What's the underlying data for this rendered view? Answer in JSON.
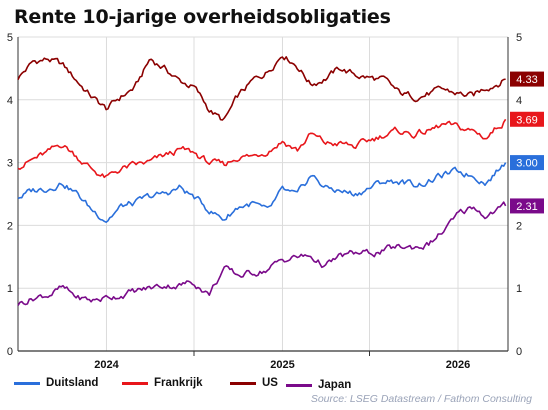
{
  "title": "Rente 10-jarige overheidsobligaties",
  "source": "Source: LSEG Datastream / Fathom Consulting",
  "colors": {
    "US": "#8b0000",
    "Frankrijk": "#e8161b",
    "Duitsland": "#2a6fdb",
    "Japan": "#7a0a8a",
    "grid": "#dcdcdc",
    "axis": "#333333"
  },
  "chart_data": {
    "type": "line",
    "title": "Rente 10-jarige overheidsobligaties",
    "xlabel": "",
    "ylabel": "",
    "ylim": [
      0,
      5
    ],
    "yticks": [
      0,
      1,
      2,
      3,
      4,
      5
    ],
    "xlim": [
      "2023-07-01",
      "2026-04-15"
    ],
    "xtick_labels": [
      {
        "label": "2024",
        "x": "2024-01-01"
      },
      {
        "label": "2025",
        "x": "2025-01-01"
      },
      {
        "label": "2026",
        "x": "2026-01-01"
      }
    ],
    "grid": true,
    "legend_position": "bottom",
    "series": [
      {
        "name": "US",
        "color": "#8b0000",
        "end_label": "4.33",
        "end_value": 4.33,
        "x": [
          "2023-07-01",
          "2023-08-01",
          "2023-09-01",
          "2023-10-01",
          "2023-11-01",
          "2023-12-01",
          "2024-01-01",
          "2024-02-01",
          "2024-03-01",
          "2024-04-01",
          "2024-05-01",
          "2024-06-01",
          "2024-07-01",
          "2024-08-01",
          "2024-09-01",
          "2024-10-01",
          "2024-11-01",
          "2024-12-01",
          "2025-01-01",
          "2025-02-01",
          "2025-03-01",
          "2025-04-01",
          "2025-05-01",
          "2025-06-01",
          "2025-07-01",
          "2025-08-01",
          "2025-09-01",
          "2025-10-01",
          "2025-11-01",
          "2025-12-01",
          "2026-01-01",
          "2026-02-01",
          "2026-03-01",
          "2026-04-10"
        ],
        "values": [
          4.35,
          4.6,
          4.65,
          4.55,
          4.3,
          4.05,
          3.85,
          4.05,
          4.2,
          4.65,
          4.5,
          4.3,
          4.2,
          3.85,
          3.65,
          4.05,
          4.3,
          4.45,
          4.75,
          4.55,
          4.25,
          4.35,
          4.5,
          4.4,
          4.35,
          4.3,
          4.1,
          4.05,
          4.1,
          4.15,
          4.1,
          4.05,
          4.2,
          4.33
        ]
      },
      {
        "name": "Frankrijk",
        "color": "#e8161b",
        "end_label": "3.69",
        "end_value": 3.69,
        "x": [
          "2023-07-01",
          "2023-08-01",
          "2023-09-01",
          "2023-10-01",
          "2023-11-01",
          "2023-12-01",
          "2024-01-01",
          "2024-02-01",
          "2024-03-01",
          "2024-04-01",
          "2024-05-01",
          "2024-06-01",
          "2024-07-01",
          "2024-08-01",
          "2024-09-01",
          "2024-10-01",
          "2024-11-01",
          "2024-12-01",
          "2025-01-01",
          "2025-02-01",
          "2025-03-01",
          "2025-04-01",
          "2025-05-01",
          "2025-06-01",
          "2025-07-01",
          "2025-08-01",
          "2025-09-01",
          "2025-10-01",
          "2025-11-01",
          "2025-12-01",
          "2026-01-01",
          "2026-02-01",
          "2026-03-01",
          "2026-04-10"
        ],
        "values": [
          2.95,
          3.05,
          3.15,
          3.3,
          3.1,
          2.9,
          2.75,
          2.9,
          2.95,
          3.0,
          3.1,
          3.2,
          3.15,
          3.0,
          2.95,
          3.1,
          3.1,
          3.2,
          3.35,
          3.2,
          3.45,
          3.3,
          3.3,
          3.25,
          3.35,
          3.45,
          3.5,
          3.45,
          3.5,
          3.6,
          3.55,
          3.5,
          3.4,
          3.69
        ]
      },
      {
        "name": "Duitsland",
        "color": "#2a6fdb",
        "end_label": "3.00",
        "end_value": 3.0,
        "x": [
          "2023-07-01",
          "2023-08-01",
          "2023-09-01",
          "2023-10-01",
          "2023-11-01",
          "2023-12-01",
          "2024-01-01",
          "2024-02-01",
          "2024-03-01",
          "2024-04-01",
          "2024-05-01",
          "2024-06-01",
          "2024-07-01",
          "2024-08-01",
          "2024-09-01",
          "2024-10-01",
          "2024-11-01",
          "2024-12-01",
          "2025-01-01",
          "2025-02-01",
          "2025-03-01",
          "2025-04-01",
          "2025-05-01",
          "2025-06-01",
          "2025-07-01",
          "2025-08-01",
          "2025-09-01",
          "2025-10-01",
          "2025-11-01",
          "2025-12-01",
          "2026-01-01",
          "2026-02-01",
          "2026-03-01",
          "2026-04-10"
        ],
        "values": [
          2.45,
          2.55,
          2.6,
          2.7,
          2.5,
          2.25,
          2.1,
          2.3,
          2.35,
          2.45,
          2.5,
          2.6,
          2.45,
          2.25,
          2.1,
          2.3,
          2.35,
          2.2,
          2.55,
          2.45,
          2.8,
          2.6,
          2.55,
          2.5,
          2.6,
          2.7,
          2.7,
          2.65,
          2.7,
          2.8,
          2.85,
          2.8,
          2.7,
          3.0
        ]
      },
      {
        "name": "Japan",
        "color": "#7a0a8a",
        "end_label": "2.31",
        "end_value": 2.31,
        "x": [
          "2023-07-01",
          "2023-08-01",
          "2023-09-01",
          "2023-10-01",
          "2023-11-01",
          "2023-12-01",
          "2024-01-01",
          "2024-02-01",
          "2024-03-01",
          "2024-04-01",
          "2024-05-01",
          "2024-06-01",
          "2024-07-01",
          "2024-08-01",
          "2024-09-01",
          "2024-10-01",
          "2024-11-01",
          "2024-12-01",
          "2025-01-01",
          "2025-02-01",
          "2025-03-01",
          "2025-04-01",
          "2025-05-01",
          "2025-06-01",
          "2025-07-01",
          "2025-08-01",
          "2025-09-01",
          "2025-10-01",
          "2025-11-01",
          "2025-12-01",
          "2026-01-01",
          "2026-02-01",
          "2026-03-01",
          "2026-04-10"
        ],
        "values": [
          0.75,
          0.85,
          0.9,
          1.0,
          0.85,
          0.8,
          0.85,
          0.9,
          0.95,
          1.0,
          1.05,
          1.05,
          1.1,
          0.9,
          1.3,
          1.2,
          1.25,
          1.3,
          1.45,
          1.5,
          1.5,
          1.35,
          1.5,
          1.55,
          1.55,
          1.6,
          1.65,
          1.65,
          1.7,
          1.9,
          2.15,
          2.3,
          2.15,
          2.31
        ]
      }
    ],
    "legend_order": [
      "Duitsland",
      "Frankrijk",
      "US",
      "Japan"
    ]
  }
}
